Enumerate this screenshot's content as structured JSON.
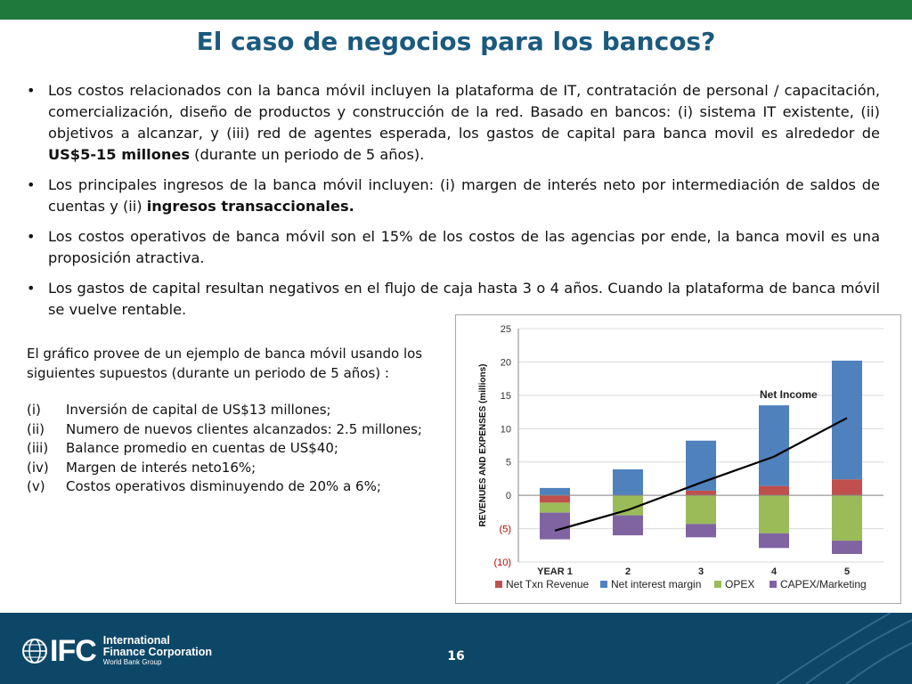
{
  "slide": {
    "title": "El caso de negocios para los bancos?",
    "page_number": "16"
  },
  "bullets": [
    {
      "parts": [
        {
          "text": "Los costos relacionados con la banca móvil incluyen la plataforma de IT, contratación de personal / capacitación, comercialización, diseño de productos y construcción de la red. Basado en bancos: (i) sistema IT existente, (ii) objetivos a alcanzar, y (iii) red de agentes esperada, los gastos de capital para banca movil es alrededor de ",
          "bold": false
        },
        {
          "text": "US$5-15 millones",
          "bold": true
        },
        {
          "text": " (durante un periodo de 5 años).",
          "bold": false
        }
      ]
    },
    {
      "parts": [
        {
          "text": "Los principales ingresos de la banca móvil incluyen: (i) margen de interés neto por intermediación de saldos de cuentas y (ii) ",
          "bold": false
        },
        {
          "text": "ingresos transaccionales.",
          "bold": true
        }
      ]
    },
    {
      "parts": [
        {
          "text": "Los costos operativos de banca móvil son el 15% de los costos de las agencias por ende, la banca movil es una proposición atractiva.",
          "bold": false
        }
      ]
    },
    {
      "parts": [
        {
          "text": "Los gastos de capital resultan negativos en el flujo de caja hasta 3 o 4 años. Cuando la plataforma de banca móvil se vuelve rentable.",
          "bold": false
        }
      ]
    }
  ],
  "assumptions": {
    "intro": "El gráfico provee de un ejemplo de banca móvil usando los siguientes supuestos (durante un periodo de 5 años) :",
    "items": [
      {
        "num": "(i)",
        "text": "Inversión de capital de US$13 millones;"
      },
      {
        "num": "(ii)",
        "text": "Numero de nuevos clientes alcanzados: 2.5 millones;"
      },
      {
        "num": "(iii)",
        "text": "Balance promedio en cuentas de US$40;"
      },
      {
        "num": "(iv)",
        "text": "Margen de interés neto16%;"
      },
      {
        "num": "(v)",
        "text": "Costos operativos disminuyendo de 20% a 6%;"
      }
    ]
  },
  "footer": {
    "logo_text": "IFC",
    "org_line1": "International",
    "org_line2": "Finance Corporation",
    "org_line3": "World Bank Group"
  },
  "colors": {
    "top_bar": "#1e7a3c",
    "title": "#1b5a7e",
    "footer": "#0d4768",
    "net_txn_revenue": "#c0504d",
    "net_interest_margin": "#4f81bd",
    "opex": "#9bbb59",
    "capex_marketing": "#8064a2",
    "net_income_line": "#000000"
  },
  "chart_data": {
    "type": "bar",
    "stacked": true,
    "ylabel": "REVENUES AND EXPENSES (millions)",
    "ylim": [
      -10,
      25
    ],
    "yticks": [
      25,
      20,
      15,
      10,
      5,
      0,
      -5,
      -10
    ],
    "ytick_labels": [
      "25",
      "20",
      "15",
      "10",
      "5",
      "0",
      "(5)",
      "(10)"
    ],
    "categories": [
      "YEAR 1",
      "2",
      "3",
      "4",
      "5"
    ],
    "grid": true,
    "legend_position": "bottom",
    "series": [
      {
        "name": "Net Txn Revenue",
        "color": "#c0504d",
        "values": [
          -1.1,
          0.0,
          0.7,
          1.4,
          2.4
        ]
      },
      {
        "name": "Net interest margin",
        "color": "#4f81bd",
        "values": [
          1.1,
          3.9,
          7.5,
          12.1,
          17.8
        ]
      },
      {
        "name": "OPEX",
        "color": "#9bbb59",
        "values": [
          -1.5,
          -3.0,
          -4.3,
          -5.7,
          -6.8
        ]
      },
      {
        "name": "CAPEX/Marketing",
        "color": "#8064a2",
        "values": [
          -4.0,
          -3.0,
          -2.0,
          -2.2,
          -2.0
        ]
      }
    ],
    "line": {
      "name": "Net Income",
      "color": "#000000",
      "values": [
        -5.3,
        -2.2,
        1.9,
        5.8,
        11.6
      ]
    }
  }
}
